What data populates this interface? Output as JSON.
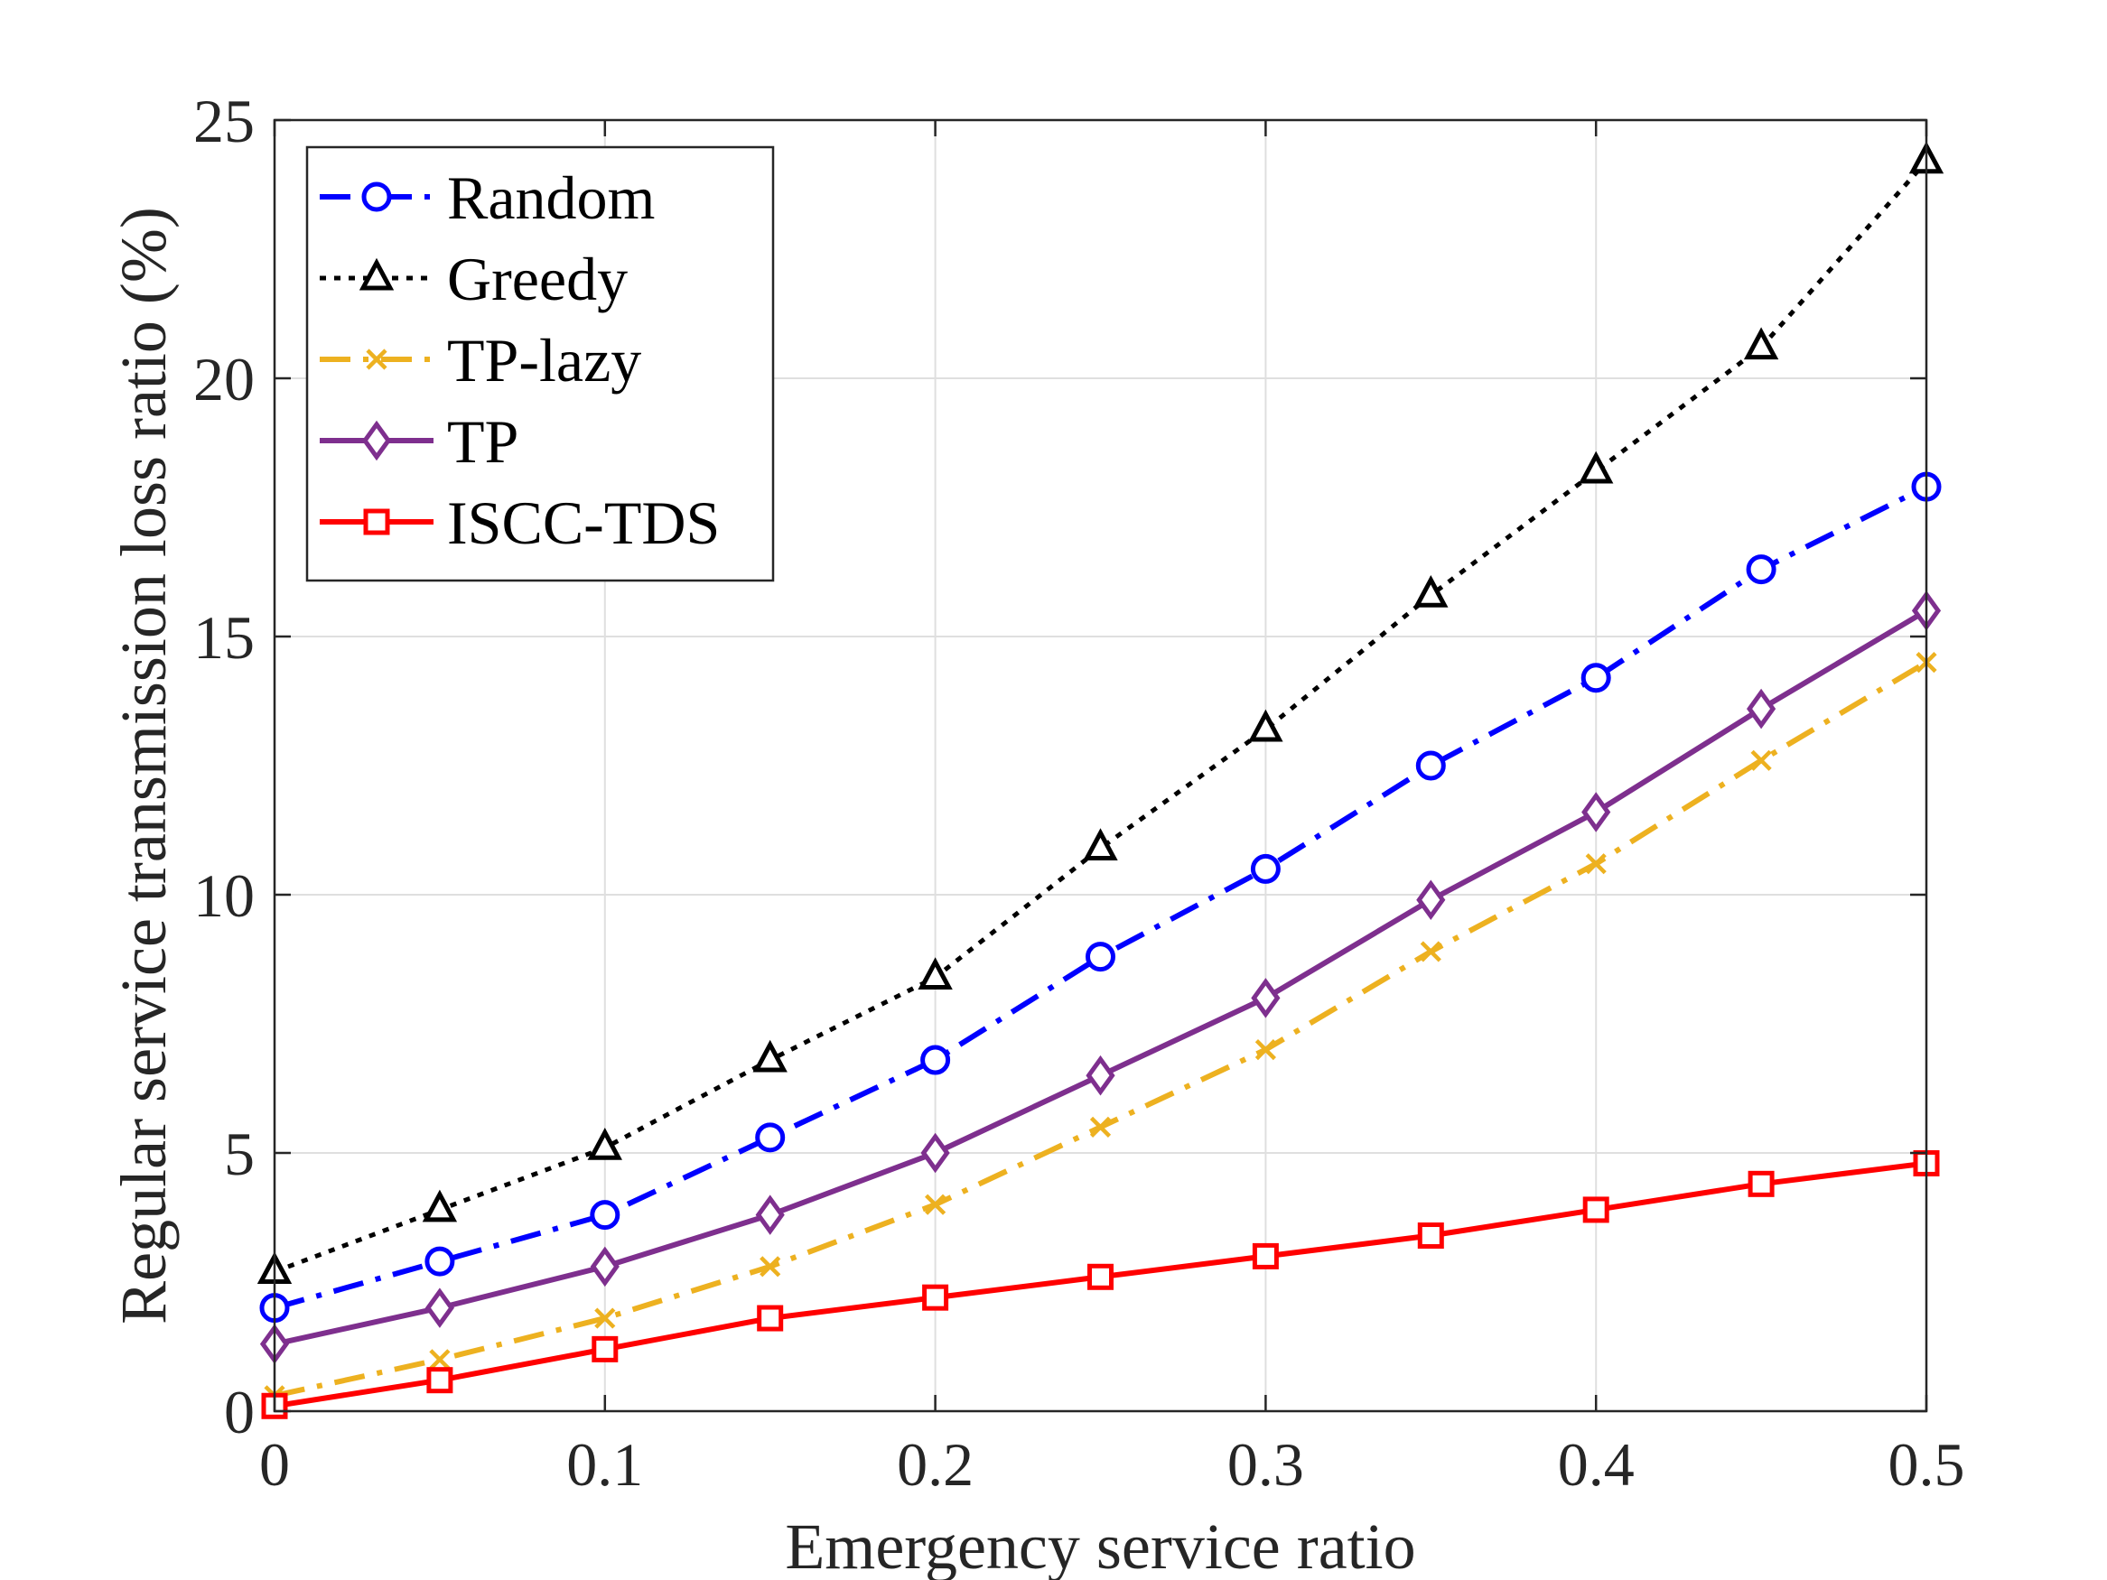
{
  "chart_data": {
    "type": "line",
    "xlabel": "Emergency service ratio",
    "ylabel": "Regular service transmission loss ratio (%)",
    "xlim": [
      0,
      0.5
    ],
    "ylim": [
      0,
      25
    ],
    "xticks": [
      "0",
      "0.1",
      "0.2",
      "0.3",
      "0.4",
      "0.5"
    ],
    "yticks": [
      "0",
      "5",
      "10",
      "15",
      "20",
      "25"
    ],
    "grid": true,
    "legend_position": "top-left",
    "x": [
      0,
      0.05,
      0.1,
      0.15,
      0.2,
      0.25,
      0.3,
      0.35,
      0.4,
      0.45,
      0.5
    ],
    "series": [
      {
        "name": "Random",
        "color": "#0000ff",
        "dash": "dash-dot",
        "marker": "circle",
        "values": [
          2.0,
          2.9,
          3.8,
          5.3,
          6.8,
          8.8,
          10.5,
          12.5,
          14.2,
          16.3,
          17.9
        ]
      },
      {
        "name": "Greedy",
        "color": "#000000",
        "dash": "dotted",
        "marker": "triangle",
        "values": [
          2.7,
          3.9,
          5.1,
          6.8,
          8.4,
          10.9,
          13.2,
          15.8,
          18.2,
          20.6,
          24.2
        ]
      },
      {
        "name": "TP-lazy",
        "color": "#edb120",
        "dash": "dash-dot",
        "marker": "x",
        "values": [
          0.3,
          1.0,
          1.8,
          2.8,
          4.0,
          5.5,
          7.0,
          8.9,
          10.6,
          12.6,
          14.5
        ]
      },
      {
        "name": "TP",
        "color": "#7e2f8e",
        "dash": "solid",
        "marker": "diamond",
        "values": [
          1.3,
          2.0,
          2.8,
          3.8,
          5.0,
          6.5,
          8.0,
          9.9,
          11.6,
          13.6,
          15.5
        ]
      },
      {
        "name": "ISCC-TDS",
        "color": "#ff0000",
        "dash": "solid",
        "marker": "square",
        "values": [
          0.1,
          0.6,
          1.2,
          1.8,
          2.2,
          2.6,
          3.0,
          3.4,
          3.9,
          4.4,
          4.8
        ]
      }
    ]
  }
}
